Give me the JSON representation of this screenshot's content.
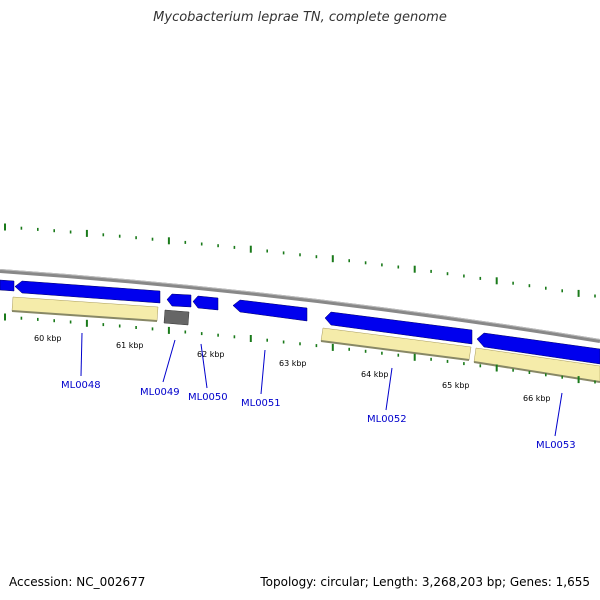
{
  "title": "Mycobacterium leprae TN, complete genome",
  "footer": {
    "accession": "Accession: NC_002677",
    "stats": "Topology: circular; Length: 3,268,203 bp; Genes: 1,655"
  },
  "colors": {
    "gene_forward": "#0000ee",
    "gene_other": "#666666",
    "cds_band": "#f5ecaa",
    "tick": "#1a7a1a",
    "backbone": "#888888",
    "label": "#0000cc"
  },
  "kbp_labels": [
    "60 kbp",
    "61 kbp",
    "62 kbp",
    "63 kbp",
    "64 kbp",
    "65 kbp",
    "66 kbp"
  ],
  "genes": [
    {
      "name": "ML0048"
    },
    {
      "name": "ML0049"
    },
    {
      "name": "ML0050"
    },
    {
      "name": "ML0051"
    },
    {
      "name": "ML0052"
    },
    {
      "name": "ML0053"
    }
  ]
}
